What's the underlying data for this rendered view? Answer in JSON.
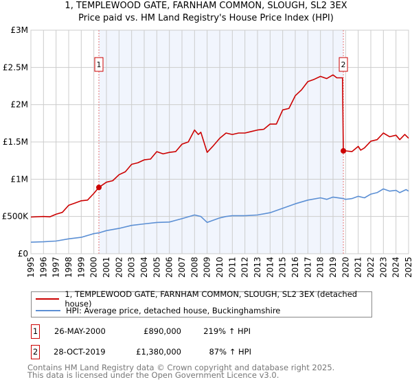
{
  "chart_data": {
    "type": "line",
    "title": "1, TEMPLEWOOD GATE, FARNHAM COMMON, SLOUGH, SL2 3EX",
    "subtitle": "Price paid vs. HM Land Registry's House Price Index (HPI)",
    "xlim": [
      1995,
      2025
    ],
    "ylim": [
      0,
      3000000
    ],
    "y_ticks": [
      {
        "v": 0,
        "label": "£0"
      },
      {
        "v": 500000,
        "label": "£500K"
      },
      {
        "v": 1000000,
        "label": "£1M"
      },
      {
        "v": 1500000,
        "label": "£1.5M"
      },
      {
        "v": 2000000,
        "label": "£2M"
      },
      {
        "v": 2500000,
        "label": "£2.5M"
      },
      {
        "v": 3000000,
        "label": "£3M"
      }
    ],
    "x_ticks": [
      "1995",
      "1996",
      "1997",
      "1998",
      "1999",
      "2000",
      "2001",
      "2002",
      "2003",
      "2004",
      "2005",
      "2006",
      "2007",
      "2008",
      "2009",
      "2010",
      "2011",
      "2012",
      "2013",
      "2014",
      "2015",
      "2016",
      "2017",
      "2018",
      "2019",
      "2020",
      "2021",
      "2022",
      "2023",
      "2024",
      "2025"
    ],
    "grid": true,
    "shaded_range": [
      2000.4,
      2019.82
    ],
    "series": [
      {
        "name": "1, TEMPLEWOOD GATE, FARNHAM COMMON, SLOUGH, SL2 3EX (detached house)",
        "color": "#cc0000",
        "x": [
          1995,
          1996,
          1996.5,
          1997,
          1997.5,
          1998,
          1998.5,
          1999,
          1999.5,
          2000,
          2000.4,
          2001,
          2001.5,
          2002,
          2002.5,
          2003,
          2003.5,
          2004,
          2004.5,
          2005,
          2005.5,
          2006,
          2006.5,
          2007,
          2007.5,
          2008,
          2008.3,
          2008.5,
          2009,
          2009.5,
          2010,
          2010.5,
          2011,
          2011.5,
          2012,
          2012.5,
          2013,
          2013.5,
          2014,
          2014.5,
          2015,
          2015.5,
          2016,
          2016.5,
          2017,
          2017.5,
          2018,
          2018.5,
          2019,
          2019.3,
          2019.75,
          2019.82,
          2020,
          2020.5,
          2021,
          2021.2,
          2021.5,
          2022,
          2022.5,
          2023,
          2023.5,
          2024,
          2024.3,
          2024.7,
          2025
        ],
        "y": [
          492000,
          500000,
          495000,
          530000,
          555000,
          650000,
          680000,
          710000,
          720000,
          810000,
          890000,
          960000,
          980000,
          1060000,
          1100000,
          1200000,
          1220000,
          1260000,
          1270000,
          1370000,
          1340000,
          1360000,
          1370000,
          1470000,
          1500000,
          1660000,
          1600000,
          1630000,
          1360000,
          1450000,
          1550000,
          1620000,
          1600000,
          1620000,
          1620000,
          1640000,
          1660000,
          1670000,
          1740000,
          1740000,
          1930000,
          1950000,
          2120000,
          2200000,
          2310000,
          2340000,
          2380000,
          2350000,
          2400000,
          2360000,
          2360000,
          1380000,
          1380000,
          1370000,
          1440000,
          1390000,
          1420000,
          1510000,
          1530000,
          1620000,
          1570000,
          1590000,
          1530000,
          1600000,
          1550000
        ]
      },
      {
        "name": "HPI: Average price, detached house, Buckinghamshire",
        "color": "#5b8fd4",
        "x": [
          1995,
          1996,
          1997,
          1998,
          1999,
          2000,
          2000.4,
          2001,
          2002,
          2003,
          2004,
          2005,
          2006,
          2007,
          2008,
          2008.5,
          2009,
          2010,
          2010.5,
          2011,
          2012,
          2013,
          2014,
          2015,
          2016,
          2017,
          2018,
          2018.5,
          2019,
          2019.8,
          2020,
          2020.5,
          2021,
          2021.5,
          2022,
          2022.5,
          2023,
          2023.5,
          2024,
          2024.3,
          2024.8,
          2025
        ],
        "y": [
          155000,
          160000,
          170000,
          200000,
          220000,
          270000,
          280000,
          310000,
          340000,
          380000,
          400000,
          420000,
          425000,
          470000,
          520000,
          500000,
          420000,
          480000,
          500000,
          510000,
          510000,
          520000,
          550000,
          610000,
          670000,
          720000,
          750000,
          730000,
          760000,
          740000,
          730000,
          740000,
          770000,
          750000,
          800000,
          820000,
          870000,
          840000,
          850000,
          820000,
          860000,
          840000
        ]
      }
    ],
    "sales": [
      {
        "id": "1",
        "x": 2000.4,
        "price": 890000,
        "date": "26-MAY-2000",
        "price_label": "£890,000",
        "hpi": "219% ↑ HPI"
      },
      {
        "id": "2",
        "x": 2019.82,
        "price": 1380000,
        "date": "28-OCT-2019",
        "price_label": "£1,380,000",
        "hpi": "87% ↑ HPI"
      }
    ]
  },
  "legend": {
    "red": "1, TEMPLEWOOD GATE, FARNHAM COMMON, SLOUGH, SL2 3EX (detached house)",
    "blue": "HPI: Average price, detached house, Buckinghamshire"
  },
  "footer": {
    "line1": "Contains HM Land Registry data © Crown copyright and database right 2025.",
    "line2": "This data is licensed under the Open Government Licence v3.0."
  }
}
